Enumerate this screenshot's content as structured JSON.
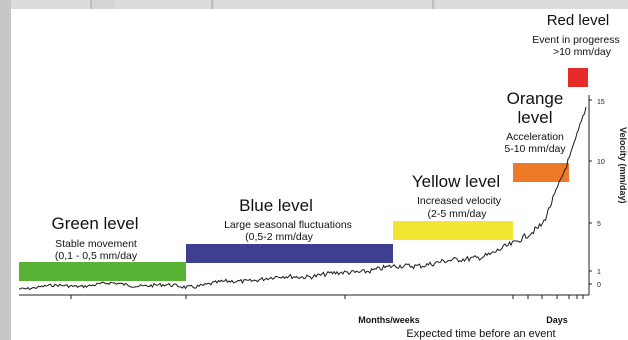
{
  "levels": [
    {
      "id": "green",
      "title": "Green level",
      "desc1": "Stable movement",
      "desc2": "(0,1 - 0,5 mm/day",
      "color": "#58b334"
    },
    {
      "id": "blue",
      "title": "Blue level",
      "desc1": "Large seasonal fluctuations",
      "desc2": "(0,5-2 mm/day",
      "color": "#3f3f91"
    },
    {
      "id": "yellow",
      "title": "Yellow level",
      "desc1": "Increased velocity",
      "desc2": "(2-5 mm/day",
      "color": "#f2e633"
    },
    {
      "id": "orange",
      "title_line1": "Orange",
      "title_line2": "level",
      "desc1": "Acceleration",
      "desc2": "5-10 mm/day",
      "color": "#ee7a28"
    },
    {
      "id": "red",
      "title": "Red level",
      "desc1": "Event in progeress",
      "desc2": ">10 mm/day",
      "color": "#e52a2a"
    }
  ],
  "axes": {
    "right_label": "Velocity (mm/day)",
    "right_ticks": [
      "15",
      "10",
      "5",
      "1",
      "0"
    ],
    "x_segment_labels": [
      "Months/weeks",
      "Days"
    ],
    "x_title": "Expected time before an event"
  },
  "chart_data": {
    "type": "line",
    "title": "",
    "xlabel": "Expected time before an event",
    "ylabel": "Velocity (mm/day)",
    "y_ticks": [
      0,
      1,
      5,
      10,
      15
    ],
    "ylim": [
      -1,
      16
    ],
    "series": [
      {
        "values": [
          -0.3,
          0.0,
          -0.2,
          0.4,
          0.8,
          1.3,
          1.8,
          2.4,
          3.2,
          5.0,
          8.0,
          10.5,
          14.5
        ]
      }
    ]
  }
}
